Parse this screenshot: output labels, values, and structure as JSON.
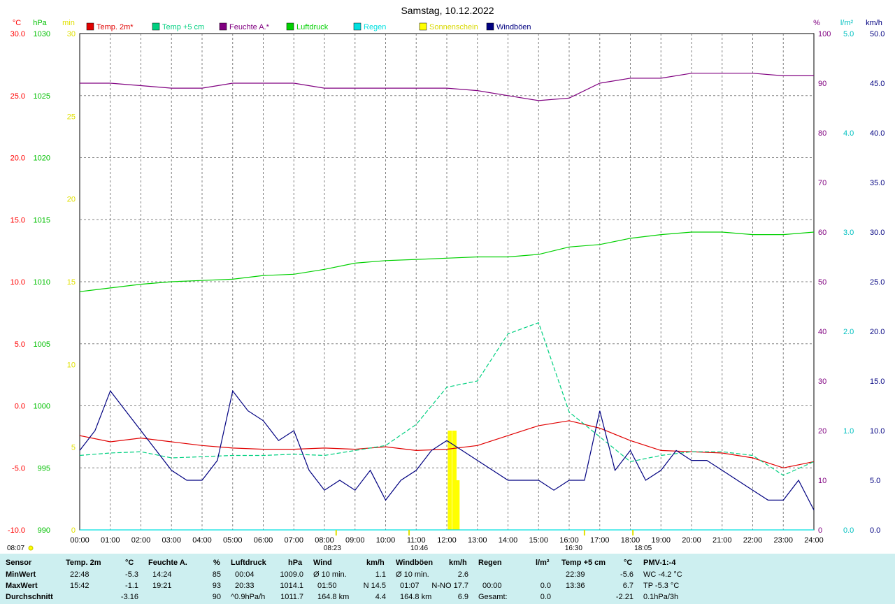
{
  "chart_data": {
    "type": "line",
    "title": "Samstag, 10.12.2022",
    "x_ticks": [
      "00:00",
      "01:00",
      "02:00",
      "03:00",
      "04:00",
      "05:00",
      "06:00",
      "07:00",
      "08:00",
      "09:00",
      "10:00",
      "11:00",
      "12:00",
      "13:00",
      "14:00",
      "15:00",
      "16:00",
      "17:00",
      "18:00",
      "19:00",
      "20:00",
      "21:00",
      "22:00",
      "23:00",
      "24:00"
    ],
    "axes": {
      "temp_c": {
        "unit": "°C",
        "ylim": [
          -10,
          30
        ],
        "ticks": [
          "30.0",
          "25.0",
          "20.0",
          "15.0",
          "10.0",
          "5.0",
          "0.0",
          "-5.0",
          "-10.0"
        ],
        "color": "#ff0000"
      },
      "pressure_hpa": {
        "unit": "hPa",
        "ylim": [
          990,
          1030
        ],
        "ticks": [
          "1030",
          "1025",
          "1020",
          "1015",
          "1010",
          "1005",
          "1000",
          "995",
          "990"
        ],
        "color": "#00c000"
      },
      "sunshine_min": {
        "unit": "min",
        "ylim": [
          0,
          30
        ],
        "ticks": [
          "30",
          "25",
          "20",
          "15",
          "10",
          "5",
          "0"
        ],
        "color": "#ffff00"
      },
      "humidity_pct": {
        "unit": "%",
        "ylim": [
          0,
          100
        ],
        "ticks": [
          "100",
          "90",
          "80",
          "70",
          "60",
          "50",
          "40",
          "30",
          "20",
          "10",
          "0"
        ],
        "color": "#800080"
      },
      "rain_lm2": {
        "unit": "l/m²",
        "ylim": [
          0,
          5
        ],
        "ticks": [
          "5.0",
          "4.0",
          "3.0",
          "2.0",
          "1.0",
          "0.0"
        ],
        "color": "#00e0e0"
      },
      "wind_kmh": {
        "unit": "km/h",
        "ylim": [
          0,
          50
        ],
        "ticks": [
          "50.0",
          "45.0",
          "40.0",
          "35.0",
          "30.0",
          "25.0",
          "20.0",
          "15.0",
          "10.0",
          "5.0",
          "0.0"
        ],
        "color": "#000000"
      }
    },
    "legend_placement": "top",
    "grid": true,
    "series": [
      {
        "name": "Temp. 2m*",
        "color": "#e00000",
        "axis": "temp_c",
        "x": [
          0,
          1,
          2,
          3,
          4,
          5,
          6,
          7,
          8,
          9,
          10,
          11,
          12,
          13,
          14,
          15,
          16,
          17,
          18,
          19,
          20,
          21,
          22,
          23,
          24
        ],
        "values": [
          -2.4,
          -2.9,
          -2.6,
          -2.9,
          -3.2,
          -3.4,
          -3.5,
          -3.5,
          -3.4,
          -3.5,
          -3.3,
          -3.6,
          -3.5,
          -3.2,
          -2.4,
          -1.6,
          -1.2,
          -1.8,
          -2.8,
          -3.6,
          -3.7,
          -3.8,
          -4.2,
          -5.0,
          -4.5
        ]
      },
      {
        "name": "Temp +5 cm",
        "color": "#00d080",
        "axis": "temp_c",
        "x": [
          0,
          1,
          2,
          3,
          4,
          5,
          6,
          7,
          8,
          9,
          10,
          11,
          12,
          13,
          14,
          15,
          16,
          17,
          18,
          19,
          20,
          21,
          22,
          23,
          24
        ],
        "values": [
          -4.0,
          -3.8,
          -3.7,
          -4.2,
          -4.1,
          -4.0,
          -4.0,
          -3.9,
          -4.0,
          -3.6,
          -3.2,
          -1.5,
          1.5,
          2.0,
          5.8,
          6.7,
          -0.5,
          -2.5,
          -4.5,
          -4.0,
          -3.7,
          -3.7,
          -4.0,
          -5.6,
          -4.5
        ]
      },
      {
        "name": "Feuchte A.*",
        "color": "#800080",
        "axis": "humidity_pct",
        "x": [
          0,
          1,
          2,
          3,
          4,
          5,
          6,
          7,
          8,
          9,
          10,
          11,
          12,
          13,
          14,
          15,
          16,
          17,
          18,
          19,
          20,
          21,
          22,
          23,
          24
        ],
        "values": [
          90,
          90,
          89.5,
          89,
          89,
          90,
          90,
          90,
          89,
          89,
          89,
          89,
          89,
          88.5,
          87.5,
          86.5,
          87,
          90,
          91,
          91,
          92,
          92,
          92,
          91.5,
          91.5
        ]
      },
      {
        "name": "Luftdruck",
        "color": "#00d000",
        "axis": "pressure_hpa",
        "x": [
          0,
          1,
          2,
          3,
          4,
          5,
          6,
          7,
          8,
          9,
          10,
          11,
          12,
          13,
          14,
          15,
          16,
          17,
          18,
          19,
          20,
          21,
          22,
          23,
          24
        ],
        "values": [
          1009.2,
          1009.5,
          1009.8,
          1010.0,
          1010.1,
          1010.2,
          1010.5,
          1010.6,
          1011.0,
          1011.5,
          1011.7,
          1011.8,
          1011.9,
          1012.0,
          1012.0,
          1012.2,
          1012.8,
          1013.0,
          1013.5,
          1013.8,
          1014.0,
          1014.0,
          1013.8,
          1013.8,
          1014.0
        ]
      },
      {
        "name": "Regen",
        "color": "#00e0e0",
        "axis": "rain_lm2",
        "x": [
          0,
          24
        ],
        "values": [
          0,
          0
        ]
      },
      {
        "name": "Sonnenschein",
        "color": "#ffff00",
        "axis": "sunshine_min",
        "bars": [
          {
            "x": 12.1,
            "value": 6
          },
          {
            "x": 12.25,
            "value": 6
          },
          {
            "x": 12.35,
            "value": 3
          }
        ]
      },
      {
        "name": "Windböen",
        "color": "#000080",
        "axis": "wind_kmh",
        "x": [
          0,
          0.5,
          1,
          1.5,
          2,
          2.5,
          3,
          3.5,
          4,
          4.5,
          5,
          5.5,
          6,
          6.5,
          7,
          7.5,
          8,
          8.5,
          9,
          9.5,
          10,
          10.5,
          11,
          11.5,
          12,
          12.5,
          13,
          13.5,
          14,
          14.5,
          15,
          15.5,
          16,
          16.5,
          17,
          17.5,
          18,
          18.5,
          19,
          19.5,
          20,
          20.5,
          21,
          21.5,
          22,
          22.5,
          23,
          23.5,
          24
        ],
        "values": [
          8,
          10,
          14,
          12,
          10,
          8,
          6,
          5,
          5,
          7,
          14,
          12,
          11,
          9,
          10,
          6,
          4,
          5,
          4,
          6,
          3,
          5,
          6,
          8,
          9,
          8,
          7,
          6,
          5,
          5,
          5,
          4,
          5,
          5,
          12,
          6,
          8,
          5,
          6,
          8,
          7,
          7,
          6,
          5,
          4,
          3,
          3,
          5,
          2
        ]
      }
    ]
  },
  "footer": {
    "sensor": {
      "title": "Sensor",
      "rows": [
        "MinWert",
        "MaxWert",
        "Durchschnitt"
      ]
    },
    "temp2m": {
      "title": "Temp. 2m",
      "unit": "°C",
      "rows": [
        [
          "22:48",
          "-5.3"
        ],
        [
          "15:42",
          "-1.1"
        ],
        [
          "",
          "-3.16"
        ]
      ]
    },
    "feuchte": {
      "title": "Feuchte A.",
      "unit": "%",
      "rows": [
        [
          "14:24",
          "85"
        ],
        [
          "19:21",
          "93"
        ],
        [
          "",
          "90"
        ]
      ]
    },
    "luftdruck": {
      "title": "Luftdruck",
      "unit": "hPa",
      "rows": [
        [
          "00:04",
          "1009.0"
        ],
        [
          "20:33",
          "1014.1"
        ],
        [
          "^0.9hPa/h",
          "1011.7"
        ]
      ]
    },
    "wind": {
      "title": "Wind",
      "unit": "km/h",
      "rows": [
        [
          "Ø 10 min.",
          "1.1"
        ],
        [
          "01:50",
          "N 14.5"
        ],
        [
          "164.8 km",
          "4.4"
        ]
      ]
    },
    "windboeen": {
      "title": "Windböen",
      "unit": "km/h",
      "rows": [
        [
          "Ø 10 min.",
          "2.6"
        ],
        [
          "01:07",
          "N-NO 17.7"
        ],
        [
          "164.8 km",
          "6.9"
        ]
      ]
    },
    "regen": {
      "title": "Regen",
      "unit": "l/m²",
      "rows": [
        [
          "",
          ""
        ],
        [
          "00:00",
          "0.0"
        ],
        [
          "Gesamt:",
          "0.0"
        ]
      ]
    },
    "temp5cm": {
      "title": "Temp +5 cm",
      "unit": "°C",
      "rows": [
        [
          "22:39",
          "-5.6"
        ],
        [
          "13:36",
          "6.7"
        ],
        [
          "",
          "-2.21"
        ]
      ]
    },
    "pmv": {
      "title": "PMV-1:-4",
      "rows": [
        "WC -4.2 °C",
        "TP -5.3 °C",
        "0.1hPa/3h"
      ]
    }
  },
  "sun_markers": {
    "sunrise": "08:07",
    "sunrise_marker": "08:23",
    "solar_noon": "10:46",
    "sunset": "16:30",
    "civil_end": "18:05"
  }
}
